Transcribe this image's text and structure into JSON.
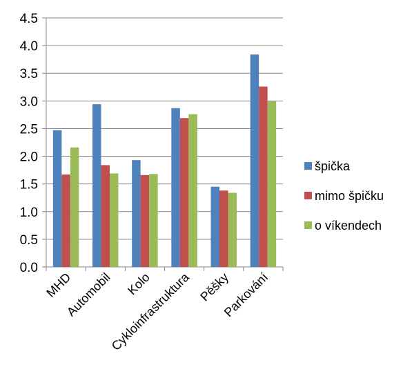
{
  "chart_data": {
    "type": "bar",
    "title": "",
    "xlabel": "",
    "ylabel": "",
    "ylim": [
      0,
      4.5
    ],
    "yticks": [
      "0.0",
      "0.5",
      "1.0",
      "1.5",
      "2.0",
      "2.5",
      "3.0",
      "3.5",
      "4.0",
      "4.5"
    ],
    "grid": true,
    "legend_position": "right",
    "categories": [
      "MHD",
      "Automobil",
      "Kolo",
      "Cykloinfrastruktura",
      "Pěšky",
      "Parkování"
    ],
    "series": [
      {
        "name": "špička",
        "color": "#4f81bd",
        "values": [
          2.47,
          2.94,
          1.93,
          2.87,
          1.45,
          3.84
        ]
      },
      {
        "name": "mimo špičku",
        "color": "#c0504d",
        "values": [
          1.67,
          1.84,
          1.66,
          2.69,
          1.38,
          3.26
        ]
      },
      {
        "name": "o víkendech",
        "color": "#9bbb59",
        "values": [
          2.16,
          1.69,
          1.68,
          2.76,
          1.34,
          2.99
        ]
      }
    ]
  }
}
